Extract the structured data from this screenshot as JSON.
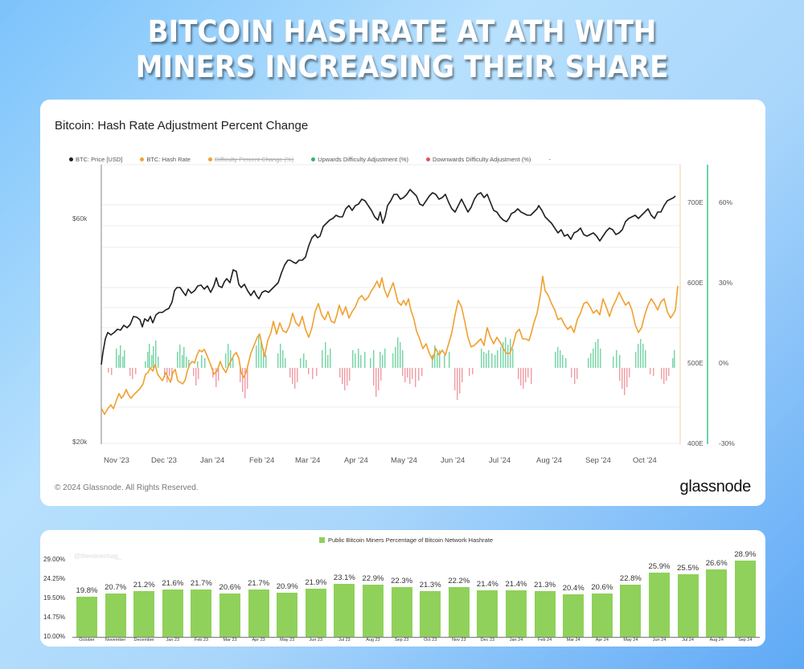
{
  "headline": {
    "line1": "BITCOIN HASHRATE AT ATH WITH",
    "line2": "MINERS INCREASING THEIR SHARE"
  },
  "colors": {
    "price": "#1f1f1f",
    "hash_rate": "#f0a030",
    "upwards": "#3ec48a",
    "downwards": "#ef7a86",
    "bar": "#8fd15a"
  },
  "glassnode_chart": {
    "title": "Bitcoin: Hash Rate Adjustment Percent Change",
    "legend": [
      {
        "label": "BTC: Price [USD]",
        "color": "#1f1f1f",
        "struck": false
      },
      {
        "label": "BTC: Hash Rate",
        "color": "#f0a030",
        "struck": false
      },
      {
        "label": "Difficulty Percent Change (%)",
        "color": "#f0a030",
        "struck": true
      },
      {
        "label": "Upwards Difficulty Adjustment (%)",
        "color": "#2fb36b",
        "struck": false
      },
      {
        "label": "Downwards Difficulty Adjustment (%)",
        "color": "#e5525e",
        "struck": false
      },
      {
        "label": "-",
        "color": "",
        "struck": false
      }
    ],
    "left_axis": [
      "$60k",
      "$20k"
    ],
    "hash_axis": [
      "700E",
      "600E",
      "500E",
      "400E"
    ],
    "pct_axis": [
      "60%",
      "30%",
      "0%",
      "-30%"
    ],
    "x_labels": [
      "Nov '23",
      "Dec '23",
      "Jan '24",
      "Feb '24",
      "Mar '24",
      "Apr '24",
      "May '24",
      "Jun '24",
      "Jul '24",
      "Aug '24",
      "Sep '24",
      "Oct '24"
    ],
    "copyright": "© 2024 Glassnode. All Rights Reserved.",
    "brand": "glassnode"
  },
  "bar_chart": {
    "legend": "Public Bitcoin Miners Percentage of Bitcoin Network Hashrate",
    "watermark": "@theminermag_ (approx.)",
    "y_ticks": [
      "29.00%",
      "24.25%",
      "19.50%",
      "14.75%",
      "10.00%"
    ]
  },
  "chart_data": [
    {
      "type": "line",
      "title": "Bitcoin: Hash Rate Adjustment Percent Change",
      "x": [
        "Nov '23",
        "Dec '23",
        "Jan '24",
        "Feb '24",
        "Mar '24",
        "Apr '24",
        "May '24",
        "Jun '24",
        "Jul '24",
        "Aug '24",
        "Sep '24",
        "Oct '24"
      ],
      "series": [
        {
          "name": "BTC: Price [USD]",
          "axis": "left (log)",
          "values_approx": [
            35000,
            37500,
            43000,
            43000,
            62000,
            68000,
            62000,
            67000,
            60000,
            57000,
            58000,
            67000
          ]
        },
        {
          "name": "BTC: Hash Rate",
          "axis": "hash (E)",
          "unit": "EH/s",
          "values_approx": [
            445,
            480,
            510,
            560,
            600,
            630,
            590,
            610,
            570,
            640,
            650,
            700
          ]
        },
        {
          "name": "Upwards Difficulty Adjustment (%)",
          "axis": "pct",
          "note": "green bars above 0%"
        },
        {
          "name": "Downwards Difficulty Adjustment (%)",
          "axis": "pct",
          "note": "red bars below 0%"
        }
      ],
      "left_axis_ticks": [
        "$20k",
        "$60k"
      ],
      "hash_axis_ticks": [
        "400E",
        "500E",
        "600E",
        "700E"
      ],
      "pct_axis_ticks": [
        "-30%",
        "0%",
        "30%",
        "60%"
      ],
      "legend_position": "top"
    },
    {
      "type": "bar",
      "title": "Public Bitcoin Miners Percentage of Bitcoin Network Hashrate",
      "categories": [
        "October",
        "November",
        "December",
        "Jan 23",
        "Feb 23",
        "Mar 23",
        "Apr 23",
        "May 23",
        "Jun 23",
        "Jul 23",
        "Aug 23",
        "Sep 23",
        "Oct 23",
        "Nov 23",
        "Dec 23",
        "Jan 24",
        "Feb 24",
        "Mar 24",
        "Apr 24",
        "May 24",
        "Jun 24",
        "Jul 24",
        "Aug 24",
        "Sep 24"
      ],
      "values": [
        19.8,
        20.7,
        21.2,
        21.6,
        21.7,
        20.6,
        21.7,
        20.9,
        21.9,
        23.1,
        22.9,
        22.3,
        21.3,
        22.2,
        21.4,
        21.4,
        21.3,
        20.4,
        20.6,
        22.8,
        25.9,
        25.5,
        26.6,
        28.9
      ],
      "labels": [
        "19.8%",
        "20.7%",
        "21.2%",
        "21.6%",
        "21.7%",
        "20.6%",
        "21.7%",
        "20.9%",
        "21.9%",
        "23.1%",
        "22.9%",
        "22.3%",
        "21.3%",
        "22.2%",
        "21.4%",
        "21.4%",
        "21.3%",
        "20.4%",
        "20.6%",
        "22.8%",
        "25.9%",
        "25.5%",
        "26.6%",
        "28.9%"
      ],
      "ylabel": "",
      "ylim": [
        10,
        29
      ],
      "y_ticks": [
        "10.00%",
        "14.75%",
        "19.50%",
        "24.25%",
        "29.00%"
      ],
      "legend_position": "top"
    }
  ]
}
